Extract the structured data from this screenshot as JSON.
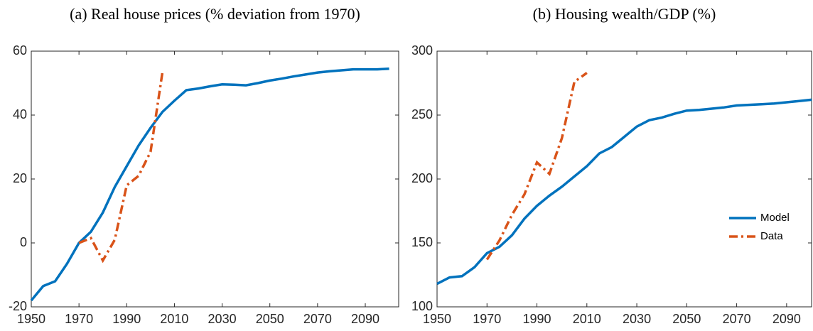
{
  "chart_data": [
    {
      "type": "line",
      "title": "(a) Real house prices (% deviation from 1970)",
      "x": [
        1950,
        1955,
        1960,
        1965,
        1970,
        1975,
        1980,
        1985,
        1990,
        1995,
        2000,
        2005,
        2010,
        2015,
        2020,
        2025,
        2030,
        2035,
        2040,
        2045,
        2050,
        2055,
        2060,
        2065,
        2070,
        2075,
        2080,
        2085,
        2090,
        2095,
        2100
      ],
      "series": [
        {
          "color": "#0072BD",
          "line_style": "solid",
          "values": [
            -18,
            -13.5,
            -12,
            -6.5,
            0,
            3.5,
            9.5,
            17.5,
            24,
            30.5,
            36,
            41,
            44.5,
            47.8,
            48.3,
            49,
            49.6,
            49.5,
            49.3,
            50,
            50.8,
            51.4,
            52.1,
            52.7,
            53.3,
            53.7,
            54,
            54.3,
            54.3,
            54.3,
            54.5
          ]
        },
        {
          "color": "#D95319",
          "line_style": "dashdot",
          "values": [
            null,
            null,
            null,
            null,
            0,
            1.5,
            -5.5,
            1,
            18,
            21,
            28.5,
            53.5,
            null,
            null,
            null,
            null,
            null,
            null,
            null,
            null,
            null,
            null,
            null,
            null,
            null,
            null,
            null,
            null,
            null,
            null,
            null
          ]
        }
      ],
      "xlim": [
        1950,
        2104
      ],
      "xticks": [
        1950,
        1970,
        1990,
        2010,
        2030,
        2050,
        2070,
        2090
      ],
      "ylim": [
        -20,
        60
      ],
      "yticks": [
        -20,
        0,
        20,
        40,
        60
      ]
    },
    {
      "type": "line",
      "title": "(b) Housing wealth/GDP (%)",
      "x": [
        1950,
        1955,
        1960,
        1965,
        1970,
        1975,
        1980,
        1985,
        1990,
        1995,
        2000,
        2005,
        2010,
        2015,
        2020,
        2025,
        2030,
        2035,
        2040,
        2045,
        2050,
        2055,
        2060,
        2065,
        2070,
        2075,
        2080,
        2085,
        2090,
        2095,
        2100
      ],
      "series": [
        {
          "name": "Model",
          "color": "#0072BD",
          "line_style": "solid",
          "values": [
            118,
            123,
            124,
            131,
            142,
            147,
            156,
            169,
            179,
            187,
            194,
            202,
            210,
            220,
            225,
            233,
            241,
            246,
            248,
            251,
            253.5,
            254,
            255,
            256,
            257.5,
            258,
            258.5,
            259,
            260,
            261,
            262
          ]
        },
        {
          "name": "Data",
          "color": "#D95319",
          "line_style": "dashdot",
          "values": [
            null,
            null,
            null,
            null,
            137,
            152,
            172,
            188,
            213,
            204,
            232,
            276,
            283,
            null,
            null,
            null,
            null,
            null,
            null,
            null,
            null,
            null,
            null,
            null,
            null,
            null,
            null,
            null,
            null,
            null,
            null
          ]
        }
      ],
      "xlim": [
        1950,
        2100
      ],
      "xticks": [
        1950,
        1970,
        1990,
        2010,
        2030,
        2050,
        2070,
        2090
      ],
      "ylim": [
        100,
        300
      ],
      "yticks": [
        100,
        150,
        200,
        250,
        300
      ],
      "legend": "right"
    }
  ]
}
